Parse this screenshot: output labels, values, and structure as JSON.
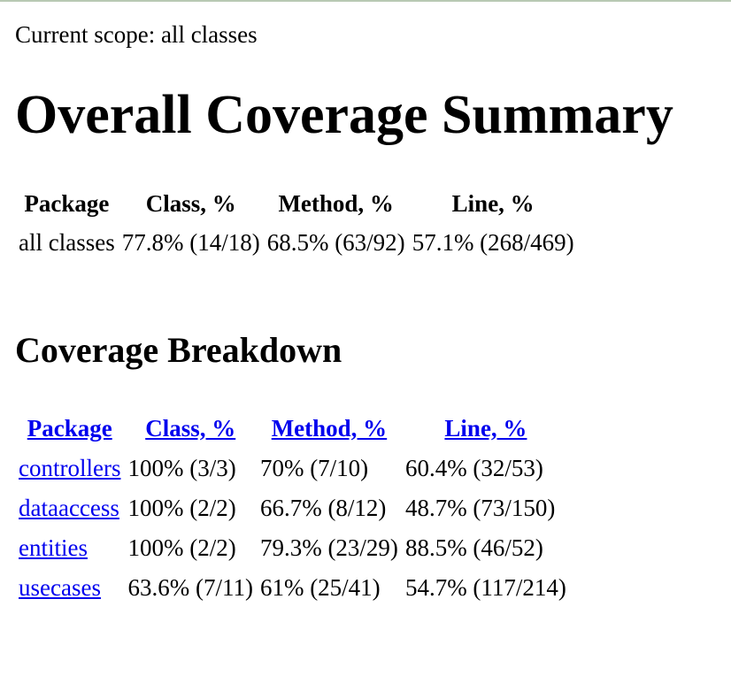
{
  "scope": "Current scope: all classes",
  "title": "Overall Coverage Summary",
  "summary": {
    "headers": [
      "Package",
      "Class, %",
      "Method, %",
      "Line, %"
    ],
    "row": [
      "all classes",
      "77.8% (14/18)",
      "68.5% (63/92)",
      "57.1% (268/469)"
    ]
  },
  "breakdown": {
    "title": "Coverage Breakdown",
    "headers": [
      "Package",
      "Class, %",
      "Method, %",
      "Line, %"
    ],
    "rows": [
      [
        "controllers",
        "100% (3/3)",
        "70% (7/10)",
        "60.4% (32/53)"
      ],
      [
        "dataaccess",
        "100% (2/2)",
        "66.7% (8/12)",
        "48.7% (73/150)"
      ],
      [
        "entities",
        "100% (2/2)",
        "79.3% (23/29)",
        "88.5% (46/52)"
      ],
      [
        "usecases",
        "63.6% (7/11)",
        "61% (25/41)",
        "54.7% (117/214)"
      ]
    ]
  },
  "colors": {
    "link": "#0000ee",
    "top_border": "#b8c9b3"
  }
}
